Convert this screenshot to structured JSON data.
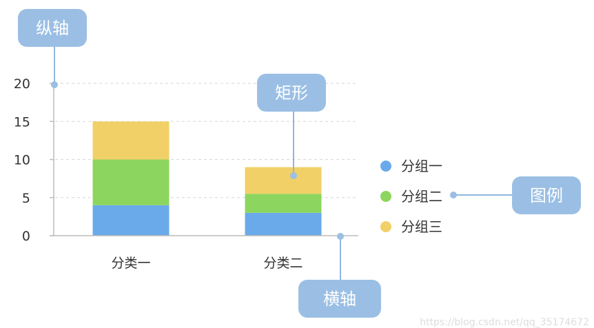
{
  "chart_data": {
    "type": "bar",
    "stacked": true,
    "categories": [
      "分类一",
      "分类二"
    ],
    "series": [
      {
        "name": "分组一",
        "values": [
          4,
          3
        ],
        "color": "#6aaaea"
      },
      {
        "name": "分组二",
        "values": [
          6,
          2.5
        ],
        "color": "#8cd65f"
      },
      {
        "name": "分组三",
        "values": [
          5,
          3.5
        ],
        "color": "#f1d068"
      }
    ],
    "yticks": [
      0,
      5,
      10,
      15,
      20
    ],
    "ylim": [
      0,
      20
    ],
    "grid": true,
    "legend_position": "right"
  },
  "annotations": {
    "y_axis": "纵轴",
    "bar": "矩形",
    "legend": "图例",
    "x_axis": "横轴"
  },
  "colors": {
    "callout_bg": "#9bbfe4",
    "callout_line": "#8fb6de",
    "axis": "#bbbbbb",
    "grid": "#d6d6d6"
  },
  "watermark": "https://blog.csdn.net/qq_35174672"
}
